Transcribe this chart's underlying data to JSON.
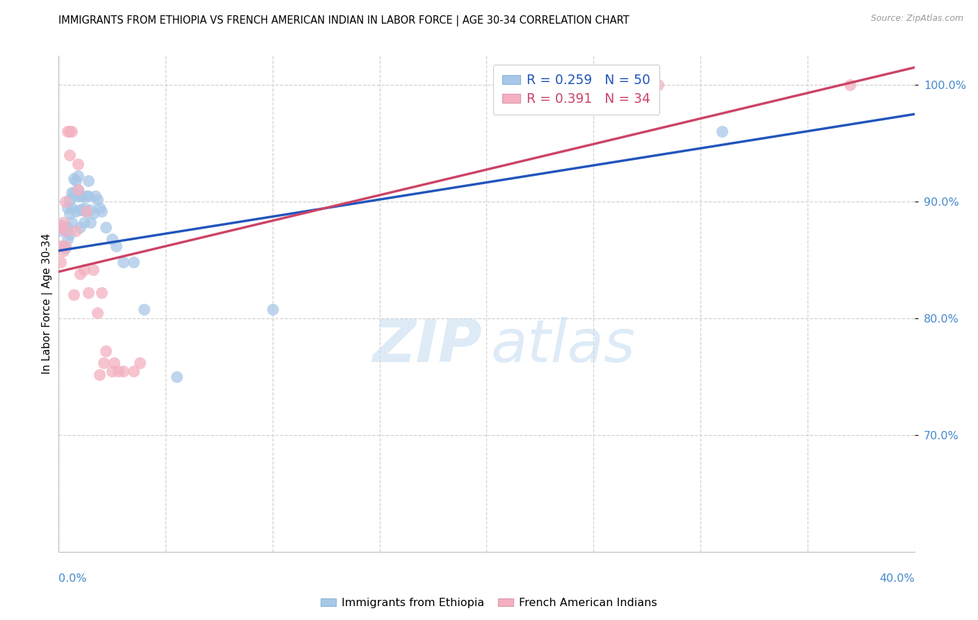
{
  "title": "IMMIGRANTS FROM ETHIOPIA VS FRENCH AMERICAN INDIAN IN LABOR FORCE | AGE 30-34 CORRELATION CHART",
  "source": "Source: ZipAtlas.com",
  "ylabel": "In Labor Force | Age 30-34",
  "legend_blue": "R = 0.259   N = 50",
  "legend_pink": "R = 0.391   N = 34",
  "legend_label_blue": "Immigrants from Ethiopia",
  "legend_label_pink": "French American Indians",
  "blue_color": "#a8c8e8",
  "pink_color": "#f4b0c0",
  "blue_line_color": "#2255bb",
  "pink_line_color": "#cc4466",
  "xmin": 0.0,
  "xmax": 0.4,
  "ymin": 0.6,
  "ymax": 1.025,
  "blue_scatter_x": [
    0.001,
    0.001,
    0.002,
    0.002,
    0.003,
    0.003,
    0.004,
    0.004,
    0.004,
    0.005,
    0.005,
    0.005,
    0.006,
    0.006,
    0.006,
    0.007,
    0.007,
    0.008,
    0.008,
    0.008,
    0.009,
    0.009,
    0.01,
    0.01,
    0.01,
    0.011,
    0.011,
    0.012,
    0.012,
    0.013,
    0.013,
    0.014,
    0.014,
    0.015,
    0.015,
    0.016,
    0.017,
    0.018,
    0.019,
    0.02,
    0.022,
    0.025,
    0.027,
    0.03,
    0.035,
    0.04,
    0.055,
    0.1,
    0.27,
    0.31
  ],
  "blue_scatter_y": [
    0.88,
    0.875,
    0.878,
    0.862,
    0.876,
    0.86,
    0.895,
    0.878,
    0.868,
    0.902,
    0.89,
    0.872,
    0.908,
    0.895,
    0.882,
    0.92,
    0.908,
    0.918,
    0.905,
    0.892,
    0.922,
    0.91,
    0.905,
    0.893,
    0.878,
    0.905,
    0.893,
    0.895,
    0.882,
    0.905,
    0.892,
    0.918,
    0.905,
    0.893,
    0.882,
    0.89,
    0.905,
    0.902,
    0.895,
    0.892,
    0.878,
    0.868,
    0.862,
    0.848,
    0.848,
    0.808,
    0.75,
    0.808,
    1.0,
    0.96
  ],
  "pink_scatter_x": [
    0.001,
    0.001,
    0.001,
    0.002,
    0.002,
    0.003,
    0.003,
    0.003,
    0.004,
    0.005,
    0.005,
    0.006,
    0.007,
    0.008,
    0.009,
    0.009,
    0.01,
    0.012,
    0.013,
    0.014,
    0.016,
    0.018,
    0.019,
    0.02,
    0.021,
    0.022,
    0.025,
    0.026,
    0.028,
    0.03,
    0.035,
    0.038,
    0.28,
    0.37
  ],
  "pink_scatter_y": [
    0.878,
    0.862,
    0.848,
    0.882,
    0.858,
    0.9,
    0.875,
    0.862,
    0.96,
    0.96,
    0.94,
    0.96,
    0.82,
    0.875,
    0.932,
    0.91,
    0.838,
    0.842,
    0.892,
    0.822,
    0.842,
    0.805,
    0.752,
    0.822,
    0.762,
    0.772,
    0.755,
    0.762,
    0.755,
    0.755,
    0.755,
    0.762,
    1.0,
    1.0
  ],
  "blue_line_x0": 0.0,
  "blue_line_x1": 0.4,
  "blue_line_y0": 0.858,
  "blue_line_y1": 0.975,
  "pink_line_x0": 0.0,
  "pink_line_x1": 0.4,
  "pink_line_y0": 0.84,
  "pink_line_y1": 1.015
}
